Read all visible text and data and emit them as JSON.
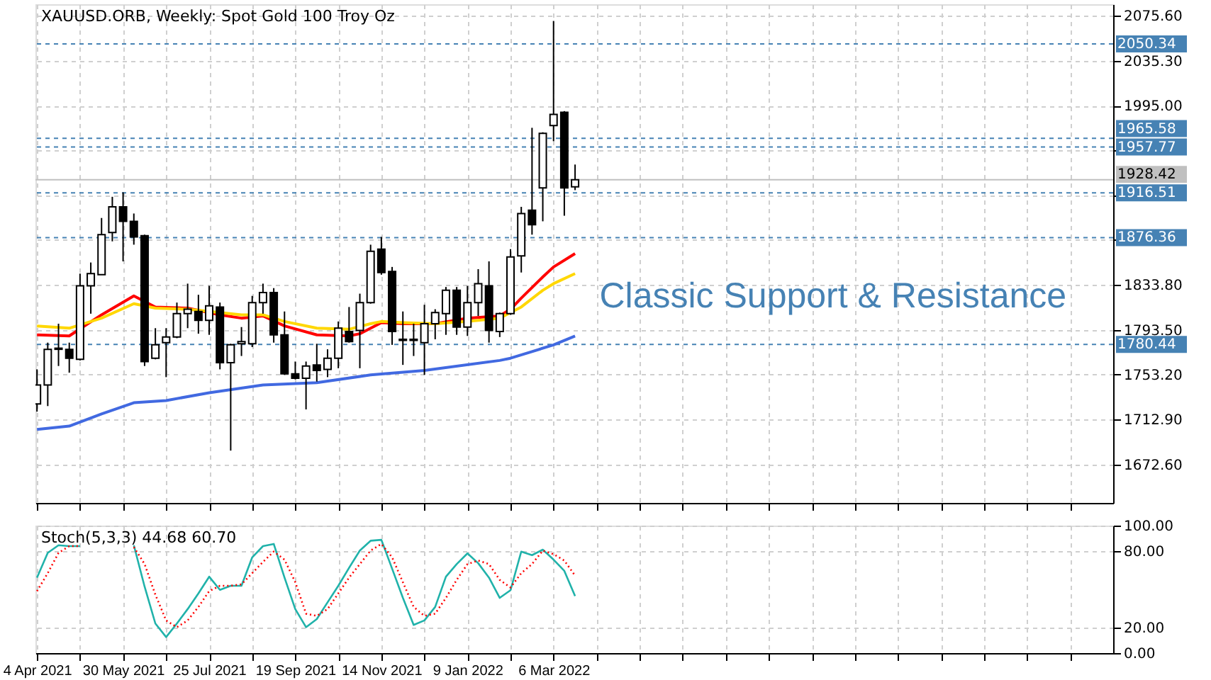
{
  "chart_data": [
    {
      "type": "candlestick",
      "title": "XAUUSD.ORB, Weekly: Spot Gold 100 Troy Oz",
      "x": [
        "2021-04-04",
        "2021-04-11",
        "2021-04-18",
        "2021-04-25",
        "2021-05-02",
        "2021-05-09",
        "2021-05-16",
        "2021-05-23",
        "2021-05-30",
        "2021-06-06",
        "2021-06-13",
        "2021-06-20",
        "2021-06-27",
        "2021-07-04",
        "2021-07-11",
        "2021-07-18",
        "2021-07-25",
        "2021-08-01",
        "2021-08-08",
        "2021-08-15",
        "2021-08-22",
        "2021-08-29",
        "2021-09-05",
        "2021-09-12",
        "2021-09-19",
        "2021-09-26",
        "2021-10-03",
        "2021-10-10",
        "2021-10-17",
        "2021-10-24",
        "2021-10-31",
        "2021-11-07",
        "2021-11-14",
        "2021-11-21",
        "2021-11-28",
        "2021-12-05",
        "2021-12-12",
        "2021-12-19",
        "2021-12-26",
        "2022-01-02",
        "2022-01-09",
        "2022-01-16",
        "2022-01-23",
        "2022-01-30",
        "2022-02-06",
        "2022-02-13",
        "2022-02-20",
        "2022-02-27",
        "2022-03-06",
        "2022-03-13",
        "2022-03-20"
      ],
      "ohlc": [
        [
          1727,
          1758,
          1720,
          1744
        ],
        [
          1744,
          1782,
          1725,
          1776
        ],
        [
          1777,
          1799,
          1761,
          1776
        ],
        [
          1776,
          1782,
          1755,
          1768
        ],
        [
          1767,
          1844,
          1766,
          1833
        ],
        [
          1833,
          1854,
          1808,
          1844
        ],
        [
          1843,
          1894,
          1843,
          1879
        ],
        [
          1881,
          1913,
          1873,
          1904
        ],
        [
          1904,
          1917,
          1855,
          1891
        ],
        [
          1891,
          1898,
          1870,
          1877
        ],
        [
          1878,
          1879,
          1761,
          1765
        ],
        [
          1768,
          1795,
          1767,
          1780
        ],
        [
          1782,
          1795,
          1751,
          1787
        ],
        [
          1787,
          1818,
          1786,
          1808
        ],
        [
          1808,
          1835,
          1795,
          1812
        ],
        [
          1810,
          1825,
          1790,
          1802
        ],
        [
          1802,
          1833,
          1789,
          1815
        ],
        [
          1814,
          1818,
          1758,
          1764
        ],
        [
          1764,
          1781,
          1685,
          1780
        ],
        [
          1781,
          1796,
          1770,
          1783
        ],
        [
          1781,
          1824,
          1778,
          1818
        ],
        [
          1818,
          1835,
          1808,
          1827
        ],
        [
          1827,
          1831,
          1782,
          1789
        ],
        [
          1789,
          1810,
          1753,
          1754
        ],
        [
          1754,
          1765,
          1749,
          1750
        ],
        [
          1750,
          1765,
          1722,
          1761
        ],
        [
          1762,
          1781,
          1747,
          1757
        ],
        [
          1758,
          1776,
          1751,
          1768
        ],
        [
          1768,
          1801,
          1759,
          1795
        ],
        [
          1792,
          1814,
          1782,
          1783
        ],
        [
          1793,
          1826,
          1759,
          1818
        ],
        [
          1818,
          1870,
          1817,
          1864
        ],
        [
          1866,
          1877,
          1843,
          1845
        ],
        [
          1846,
          1850,
          1780,
          1792
        ],
        [
          1785,
          1810,
          1762,
          1784
        ],
        [
          1784,
          1799,
          1770,
          1785
        ],
        [
          1782,
          1816,
          1753,
          1799
        ],
        [
          1799,
          1812,
          1785,
          1809
        ],
        [
          1808,
          1832,
          1789,
          1829
        ],
        [
          1829,
          1832,
          1789,
          1796
        ],
        [
          1796,
          1833,
          1788,
          1818
        ],
        [
          1818,
          1848,
          1806,
          1835
        ],
        [
          1833,
          1855,
          1782,
          1793
        ],
        [
          1792,
          1809,
          1787,
          1808
        ],
        [
          1808,
          1866,
          1807,
          1859
        ],
        [
          1860,
          1904,
          1845,
          1898
        ],
        [
          1901,
          1975,
          1879,
          1888
        ],
        [
          1921,
          1971,
          1891,
          1970
        ],
        [
          1977,
          2071,
          1963,
          1987
        ],
        [
          1989,
          1990,
          1896,
          1921
        ],
        [
          1922,
          1942,
          1919,
          1928.42
        ]
      ],
      "series": [
        {
          "type": "line",
          "color": "#ff0000",
          "x": [
            "2021-04-04",
            "2021-04-25",
            "2021-05-16",
            "2021-06-06",
            "2021-06-20",
            "2021-07-11",
            "2021-08-01",
            "2021-08-15",
            "2021-08-29",
            "2021-09-12",
            "2021-10-03",
            "2021-10-24",
            "2021-10-31",
            "2021-11-14",
            "2021-11-28",
            "2021-12-19",
            "2022-01-09",
            "2022-01-30",
            "2022-02-06",
            "2022-02-13",
            "2022-02-27",
            "2022-03-06",
            "2022-03-20"
          ],
          "values": [
            1789,
            1788,
            1807,
            1824,
            1814,
            1813,
            1807,
            1804,
            1806,
            1797,
            1789,
            1788,
            1790,
            1800,
            1799,
            1799,
            1804,
            1806,
            1812,
            1822,
            1841,
            1850,
            1862
          ]
        },
        {
          "type": "line",
          "color": "#ffd700",
          "x": [
            "2021-04-04",
            "2021-04-25",
            "2021-05-16",
            "2021-06-06",
            "2021-06-20",
            "2021-07-11",
            "2021-08-01",
            "2021-08-15",
            "2021-08-29",
            "2021-09-12",
            "2021-10-03",
            "2021-10-24",
            "2021-11-07",
            "2021-11-14",
            "2021-11-28",
            "2021-12-19",
            "2022-01-09",
            "2022-01-30",
            "2022-02-06",
            "2022-02-13",
            "2022-02-27",
            "2022-03-06",
            "2022-03-20"
          ],
          "values": [
            1797,
            1795,
            1804,
            1817,
            1813,
            1812,
            1809,
            1807,
            1807,
            1801,
            1795,
            1794,
            1799,
            1801,
            1800,
            1799,
            1801,
            1804,
            1809,
            1814,
            1829,
            1835,
            1844
          ]
        },
        {
          "type": "line",
          "color": "#4169e1",
          "x": [
            "2021-04-04",
            "2021-04-25",
            "2021-05-16",
            "2021-06-06",
            "2021-06-27",
            "2021-07-25",
            "2021-08-29",
            "2021-10-03",
            "2021-11-07",
            "2021-12-12",
            "2022-01-30",
            "2022-02-06",
            "2022-02-20",
            "2022-03-06",
            "2022-03-20"
          ],
          "values": [
            1704,
            1707,
            1718,
            1728,
            1730,
            1737,
            1744,
            1746,
            1753,
            1757,
            1766,
            1768,
            1774,
            1780,
            1788
          ]
        }
      ],
      "ref_lines": [
        {
          "axis": "y",
          "value": 2050.34,
          "label": "2050.34",
          "color": "#4682b4",
          "line_style": "dashed"
        },
        {
          "axis": "y",
          "value": 1965.58,
          "label": "1965.58",
          "color": "#4682b4",
          "line_style": "dashed"
        },
        {
          "axis": "y",
          "value": 1957.77,
          "label": "1957.77",
          "color": "#4682b4",
          "line_style": "dashed"
        },
        {
          "axis": "y",
          "value": 1928.42,
          "label": "1928.42",
          "color": "#c0c0c0",
          "line_style": "solid"
        },
        {
          "axis": "y",
          "value": 1916.51,
          "label": "1916.51",
          "color": "#4682b4",
          "line_style": "dashed"
        },
        {
          "axis": "y",
          "value": 1876.36,
          "label": "1876.36",
          "color": "#4682b4",
          "line_style": "dashed"
        },
        {
          "axis": "y",
          "value": 1780.44,
          "label": "1780.44",
          "color": "#4682b4",
          "line_style": "dashed"
        }
      ],
      "annotations": [
        "Classic Support & Resistance"
      ],
      "xlim": [
        "2021-04-03",
        "2023-03-05"
      ],
      "xticks": [
        {
          "value": "2021-04-04",
          "label": null
        },
        {
          "value": "2021-05-02",
          "label": null
        },
        {
          "value": "2021-05-30",
          "label": null
        },
        {
          "value": "2021-06-27",
          "label": null
        },
        {
          "value": "2021-07-25",
          "label": null
        },
        {
          "value": "2021-08-22",
          "label": null
        },
        {
          "value": "2021-09-19",
          "label": null
        },
        {
          "value": "2021-10-17",
          "label": null
        },
        {
          "value": "2021-11-14",
          "label": null
        },
        {
          "value": "2021-12-12",
          "label": null
        },
        {
          "value": "2022-01-09",
          "label": null
        },
        {
          "value": "2022-02-06",
          "label": null
        },
        {
          "value": "2022-03-06",
          "label": null
        },
        {
          "value": "2022-04-03",
          "label": null
        },
        {
          "value": "2022-05-01",
          "label": null
        },
        {
          "value": "2022-05-29",
          "label": null
        },
        {
          "value": "2022-06-26",
          "label": null
        },
        {
          "value": "2022-07-24",
          "label": null
        },
        {
          "value": "2022-08-21",
          "label": null
        },
        {
          "value": "2022-09-18",
          "label": null
        },
        {
          "value": "2022-10-16",
          "label": null
        },
        {
          "value": "2022-11-13",
          "label": null
        },
        {
          "value": "2022-12-11",
          "label": null
        },
        {
          "value": "2023-01-08",
          "label": null
        },
        {
          "value": "2023-02-05",
          "label": null
        }
      ],
      "ylim": [
        1638,
        2086
      ],
      "yticks": [
        {
          "value": 2075.6,
          "label": "2075.60"
        },
        {
          "value": 2035.3,
          "label": "2035.30"
        },
        {
          "value": 1995,
          "label": "1995.00"
        },
        {
          "value": 1954.7,
          "label": null
        },
        {
          "value": 1914.4,
          "label": null
        },
        {
          "value": 1874.1,
          "label": null
        },
        {
          "value": 1833.8,
          "label": "1833.80"
        },
        {
          "value": 1793.5,
          "label": "1793.50"
        },
        {
          "value": 1753.2,
          "label": "1753.20"
        },
        {
          "value": 1712.9,
          "label": "1712.90"
        },
        {
          "value": 1672.6,
          "label": "1672.60"
        }
      ],
      "grid": true,
      "tick_labels": "y"
    },
    {
      "type": "line",
      "title": "Stoch(5,3,3) 44.68 60.70",
      "x": [
        "2021-04-04",
        "2021-04-11",
        "2021-04-18",
        "2021-04-25",
        "2021-05-02",
        "2021-05-09",
        "2021-05-16",
        "2021-05-23",
        "2021-05-30",
        "2021-06-06",
        "2021-06-13",
        "2021-06-20",
        "2021-06-27",
        "2021-07-04",
        "2021-07-11",
        "2021-07-18",
        "2021-07-25",
        "2021-08-01",
        "2021-08-08",
        "2021-08-15",
        "2021-08-22",
        "2021-08-29",
        "2021-09-05",
        "2021-09-12",
        "2021-09-19",
        "2021-09-26",
        "2021-10-03",
        "2021-10-10",
        "2021-10-17",
        "2021-10-24",
        "2021-10-31",
        "2021-11-07",
        "2021-11-14",
        "2021-11-21",
        "2021-11-28",
        "2021-12-05",
        "2021-12-12",
        "2021-12-19",
        "2021-12-26",
        "2022-01-02",
        "2022-01-09",
        "2022-01-16",
        "2022-01-23",
        "2022-01-30",
        "2022-02-06",
        "2022-02-13",
        "2022-02-20",
        "2022-02-27",
        "2022-03-06",
        "2022-03-13",
        "2022-03-20"
      ],
      "series": [
        {
          "color": "#20b2aa",
          "line_style": "solid",
          "values": [
            59.2,
            78.6,
            84.6,
            83.9,
            83.9,
            null,
            null,
            null,
            null,
            84.6,
            52.1,
            23.2,
            12.6,
            23.2,
            34.5,
            46.8,
            59.9,
            49.6,
            52.8,
            52.8,
            75.1,
            83.9,
            85.6,
            59.2,
            34.5,
            20.3,
            26.7,
            39.8,
            52.8,
            66.9,
            80.4,
            88.1,
            88.8,
            66.2,
            43.3,
            22.1,
            25.6,
            36.2,
            59.9,
            69.8,
            78.2,
            70.5,
            59.2,
            43.3,
            49.3,
            79.6,
            76.8,
            81.1,
            73.3,
            64.5,
            44.68
          ]
        },
        {
          "color": "#ff0000",
          "line_style": "dotted",
          "values": [
            48.6,
            62.7,
            78.6,
            83.9,
            83.9,
            null,
            null,
            null,
            null,
            83.2,
            69.8,
            45.8,
            25.6,
            20.3,
            25.6,
            36.2,
            48.6,
            52.8,
            52.8,
            53.9,
            62.7,
            71.5,
            79.6,
            73.3,
            55.6,
            30.9,
            29.2,
            34.5,
            46.8,
            59.2,
            69.8,
            80.4,
            85.6,
            75.1,
            55.6,
            36.2,
            29.2,
            30.9,
            43.3,
            57.4,
            69.8,
            72.6,
            69.8,
            57.4,
            51.4,
            62.7,
            69.8,
            80.4,
            77.6,
            72.6,
            60.7
          ]
        }
      ],
      "xlim": [
        "2021-04-03",
        "2023-03-05"
      ],
      "xticks": [
        {
          "value": "2021-04-04",
          "label": "4 Apr 2021"
        },
        {
          "value": "2021-05-02",
          "label": null
        },
        {
          "value": "2021-05-30",
          "label": "30 May 2021"
        },
        {
          "value": "2021-06-27",
          "label": null
        },
        {
          "value": "2021-07-25",
          "label": "25 Jul 2021"
        },
        {
          "value": "2021-08-22",
          "label": null
        },
        {
          "value": "2021-09-19",
          "label": "19 Sep 2021"
        },
        {
          "value": "2021-10-17",
          "label": null
        },
        {
          "value": "2021-11-14",
          "label": "14 Nov 2021"
        },
        {
          "value": "2021-12-12",
          "label": null
        },
        {
          "value": "2022-01-09",
          "label": "9 Jan 2022"
        },
        {
          "value": "2022-02-06",
          "label": null
        },
        {
          "value": "2022-03-06",
          "label": "6 Mar 2022"
        },
        {
          "value": "2022-04-03",
          "label": null
        },
        {
          "value": "2022-05-01",
          "label": null
        },
        {
          "value": "2022-05-29",
          "label": null
        },
        {
          "value": "2022-06-26",
          "label": null
        },
        {
          "value": "2022-07-24",
          "label": null
        },
        {
          "value": "2022-08-21",
          "label": null
        },
        {
          "value": "2022-09-18",
          "label": null
        },
        {
          "value": "2022-10-16",
          "label": null
        },
        {
          "value": "2022-11-13",
          "label": null
        },
        {
          "value": "2022-12-11",
          "label": null
        },
        {
          "value": "2023-01-08",
          "label": null
        },
        {
          "value": "2023-02-05",
          "label": null
        }
      ],
      "ylim": [
        0,
        100
      ],
      "yticks": [
        {
          "value": 100,
          "label": "100.00"
        },
        {
          "value": 80,
          "label": "80.00"
        },
        {
          "value": 20,
          "label": "20.00"
        },
        {
          "value": 0,
          "label": "0.00"
        }
      ],
      "grid": true
    }
  ]
}
